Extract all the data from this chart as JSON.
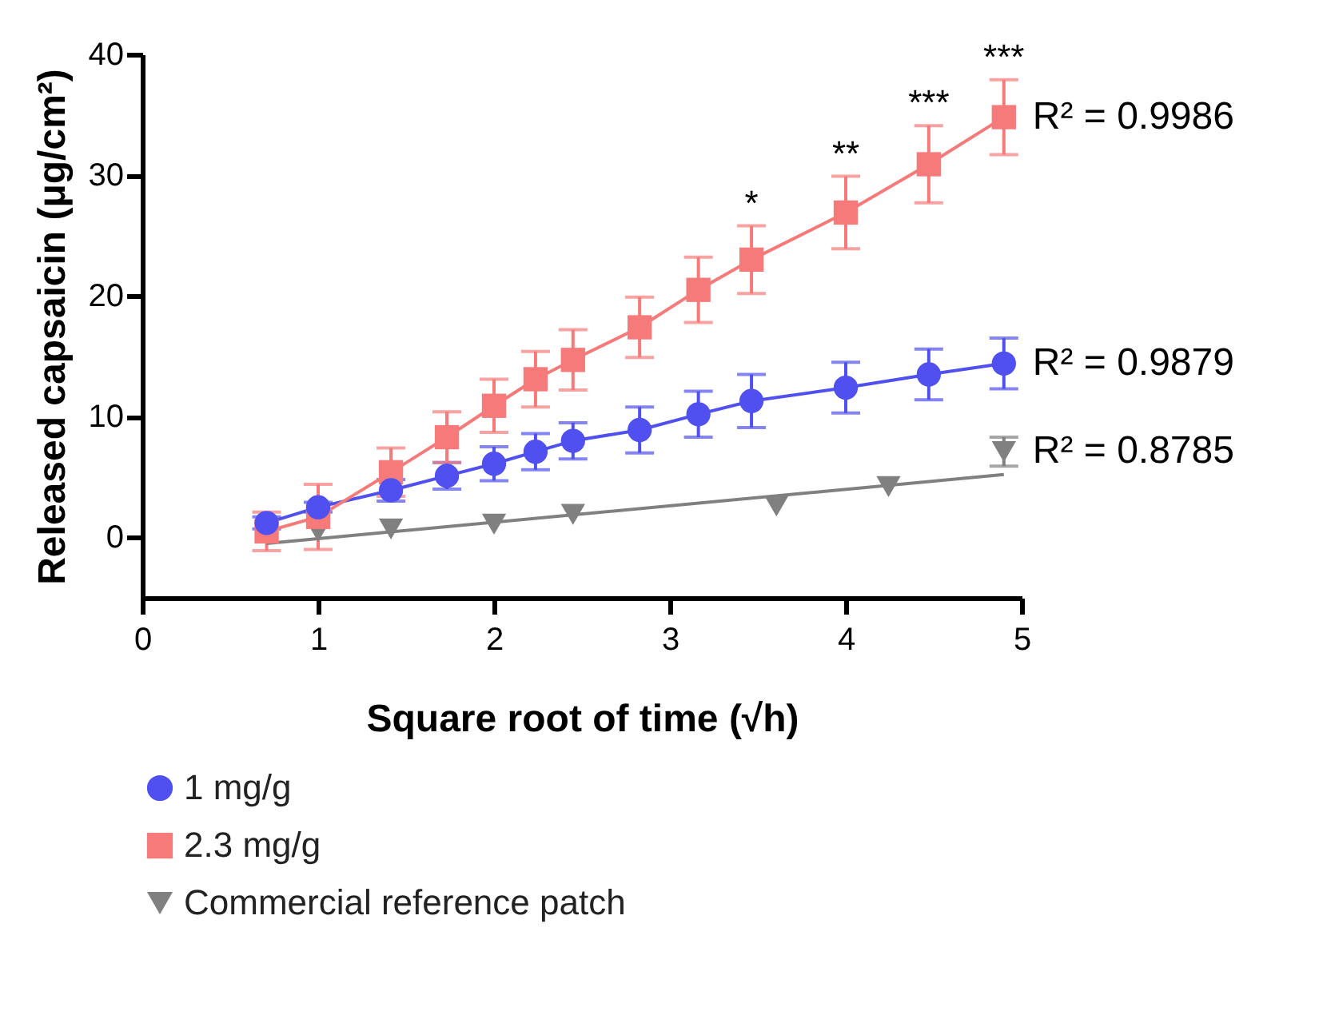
{
  "chart_data": {
    "type": "line",
    "xlabel": "Square root of time (√h)",
    "ylabel": "Released capsaicin (μg/cm²)",
    "xlim": [
      0,
      5
    ],
    "xticks": [
      0,
      1,
      2,
      3,
      4,
      5
    ],
    "ylim": [
      -5,
      40
    ],
    "yticks": [
      0,
      10,
      20,
      30,
      40
    ],
    "grid": false,
    "legend": "bottom",
    "series": [
      {
        "name": "1 mg/g",
        "color": "#5050f0",
        "type": "line",
        "marker": "circle",
        "x": [
          0.707,
          1,
          1.414,
          1.732,
          2,
          2.236,
          2.449,
          2.828,
          3.162,
          3.464,
          4,
          4.472,
          4.899
        ],
        "values": [
          1.2,
          2.5,
          3.9,
          5.1,
          6.1,
          7.1,
          8.0,
          8.9,
          10.2,
          11.3,
          12.4,
          13.5,
          14.4
        ],
        "errors": [
          0.5,
          0.4,
          0.9,
          1.1,
          1.4,
          1.5,
          1.5,
          1.9,
          1.9,
          2.2,
          2.1,
          2.1,
          2.1
        ]
      },
      {
        "name": "2.3 mg/g",
        "color": "#f77a7a",
        "type": "line",
        "marker": "square",
        "x": [
          0.707,
          1,
          1.414,
          1.732,
          2,
          2.236,
          2.449,
          2.828,
          3.162,
          3.464,
          4,
          4.472,
          4.899
        ],
        "values": [
          0.5,
          1.7,
          5.4,
          8.3,
          10.9,
          13.1,
          14.7,
          17.4,
          20.5,
          23.0,
          26.9,
          30.9,
          34.8
        ],
        "errors": [
          1.6,
          2.7,
          2.0,
          2.1,
          2.2,
          2.3,
          2.5,
          2.5,
          2.7,
          2.8,
          3.0,
          3.2,
          3.1
        ]
      },
      {
        "name": "Commercial reference patch",
        "color": "#808080",
        "type": "scatter",
        "marker": "triangle",
        "x": [
          1,
          1.414,
          2,
          2.449,
          3.606,
          4.243,
          4.899
        ],
        "values": [
          0.5,
          0.7,
          1.1,
          1.9,
          2.6,
          4.2,
          7.1
        ],
        "errors": [
          null,
          null,
          null,
          null,
          null,
          null,
          1.2
        ]
      },
      {
        "color": "#808080",
        "type": "line",
        "marker": "none",
        "x": [
          0.707,
          4.899
        ],
        "values": [
          -0.5,
          5.2
        ]
      }
    ],
    "annotations": [
      {
        "text": "R² = 0.9986",
        "x": 4.899,
        "y": 34.8
      },
      {
        "text": "R² = 0.9879",
        "x": 4.899,
        "y": 14.4
      },
      {
        "text": "R² = 0.8785",
        "x": 4.899,
        "y": 7.1
      },
      {
        "text": "*",
        "x": 3.464,
        "y": 25.8
      },
      {
        "text": "**",
        "x": 4,
        "y": 29.9
      },
      {
        "text": "***",
        "x": 4.472,
        "y": 34.1
      },
      {
        "text": "***",
        "x": 4.899,
        "y": 37.9
      }
    ]
  }
}
